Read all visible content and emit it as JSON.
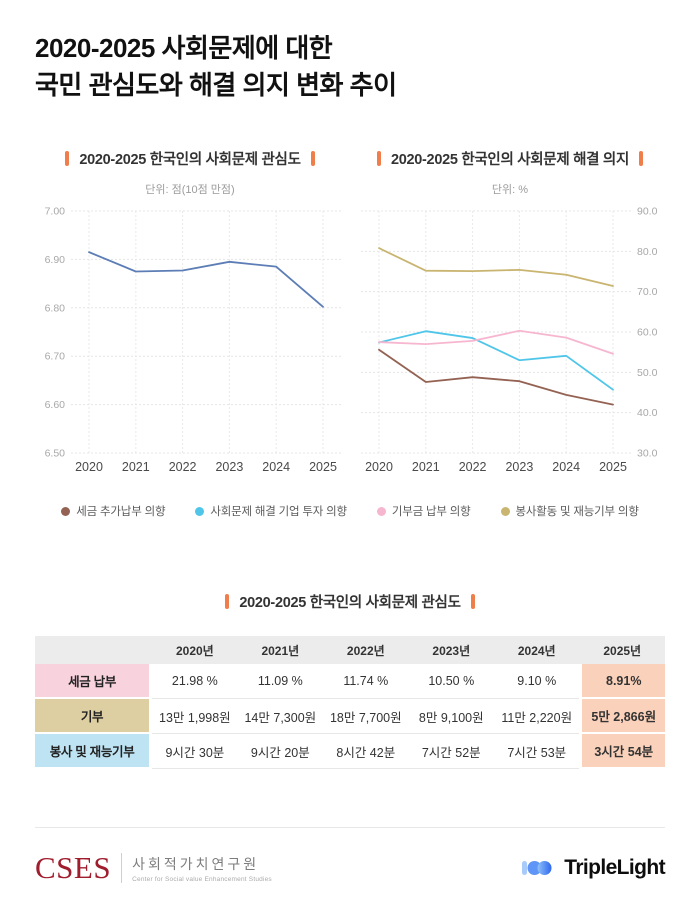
{
  "page": {
    "title_line1": "2020-2025 사회문제에 대한",
    "title_line2": "국민 관심도와 해결 의지 변화 추이"
  },
  "colors": {
    "accent_orange": "#EF7E4B",
    "highlight_cell": "#FAD1BA",
    "interest_line": "#5C7DB5"
  },
  "chart_data": [
    {
      "type": "line",
      "title": "2020-2025 한국인의 사회문제 관심도",
      "unit": "단위: 점(10점 만점)",
      "categories": [
        "2020",
        "2021",
        "2022",
        "2023",
        "2024",
        "2025"
      ],
      "series": [
        {
          "name": "사회문제 관심도",
          "color": "#5C7DB5",
          "values": [
            6.915,
            6.875,
            6.877,
            6.895,
            6.885,
            6.802
          ]
        }
      ],
      "ylim": [
        6.5,
        7.0
      ],
      "yticks": [
        "7.00",
        "6.90",
        "6.80",
        "6.70",
        "6.60",
        "6.50"
      ],
      "yaxis_side": "left",
      "grid": true,
      "legend_position": "none"
    },
    {
      "type": "line",
      "title": "2020-2025 한국인의 사회문제 해결 의지",
      "unit": "단위: %",
      "categories": [
        "2020",
        "2021",
        "2022",
        "2023",
        "2024",
        "2025"
      ],
      "series": [
        {
          "name": "세금 추가납부 의향",
          "color": "#946253",
          "values": [
            55.6,
            47.6,
            48.8,
            47.8,
            44.4,
            42.0
          ]
        },
        {
          "name": "사회문제 해결 기업 투자 의향",
          "color": "#4FC6E9",
          "values": [
            57.4,
            60.2,
            58.5,
            53.0,
            54.1,
            45.7
          ]
        },
        {
          "name": "기부금 납부 의향",
          "color": "#F7B6CF",
          "values": [
            57.5,
            57.0,
            57.8,
            60.3,
            58.6,
            54.6
          ]
        },
        {
          "name": "봉사활동 및 재능기부 의향",
          "color": "#C9B470",
          "values": [
            80.8,
            75.2,
            75.1,
            75.4,
            74.2,
            71.4
          ]
        }
      ],
      "ylim": [
        30,
        90
      ],
      "yticks": [
        "90.0",
        "80.0",
        "70.0",
        "60.0",
        "50.0",
        "40.0",
        "30.0"
      ],
      "yaxis_side": "right",
      "grid": true,
      "legend_position": "bottom-shared"
    }
  ],
  "table": {
    "title": "2020-2025 한국인의 사회문제 관심도",
    "columns": [
      "",
      "2020년",
      "2021년",
      "2022년",
      "2023년",
      "2024년",
      "2025년"
    ],
    "rows": [
      {
        "label": "세금 납부",
        "label_color": "#F8D3DE",
        "values": [
          "21.98 %",
          "11.09 %",
          "11.74 %",
          "10.50 %",
          "9.10 %",
          "8.91%"
        ]
      },
      {
        "label": "기부",
        "label_color": "#DECFA3",
        "values": [
          "13만 1,998원",
          "14만 7,300원",
          "18만 7,700원",
          "8만 9,100원",
          "11만 2,220원",
          "5만 2,866원"
        ]
      },
      {
        "label": "봉사 및 재능기부",
        "label_color": "#BEE3F2",
        "values": [
          "9시간 30분",
          "9시간 20분",
          "8시간 42분",
          "7시간 52분",
          "7시간 53분",
          "3시간 54분"
        ]
      }
    ]
  },
  "footer": {
    "cses_logo": "CSES",
    "cses_kr": "사회적가치연구원",
    "cses_en": "Center for Social value Enhancement Studies",
    "triplelight": "TripleLight"
  }
}
